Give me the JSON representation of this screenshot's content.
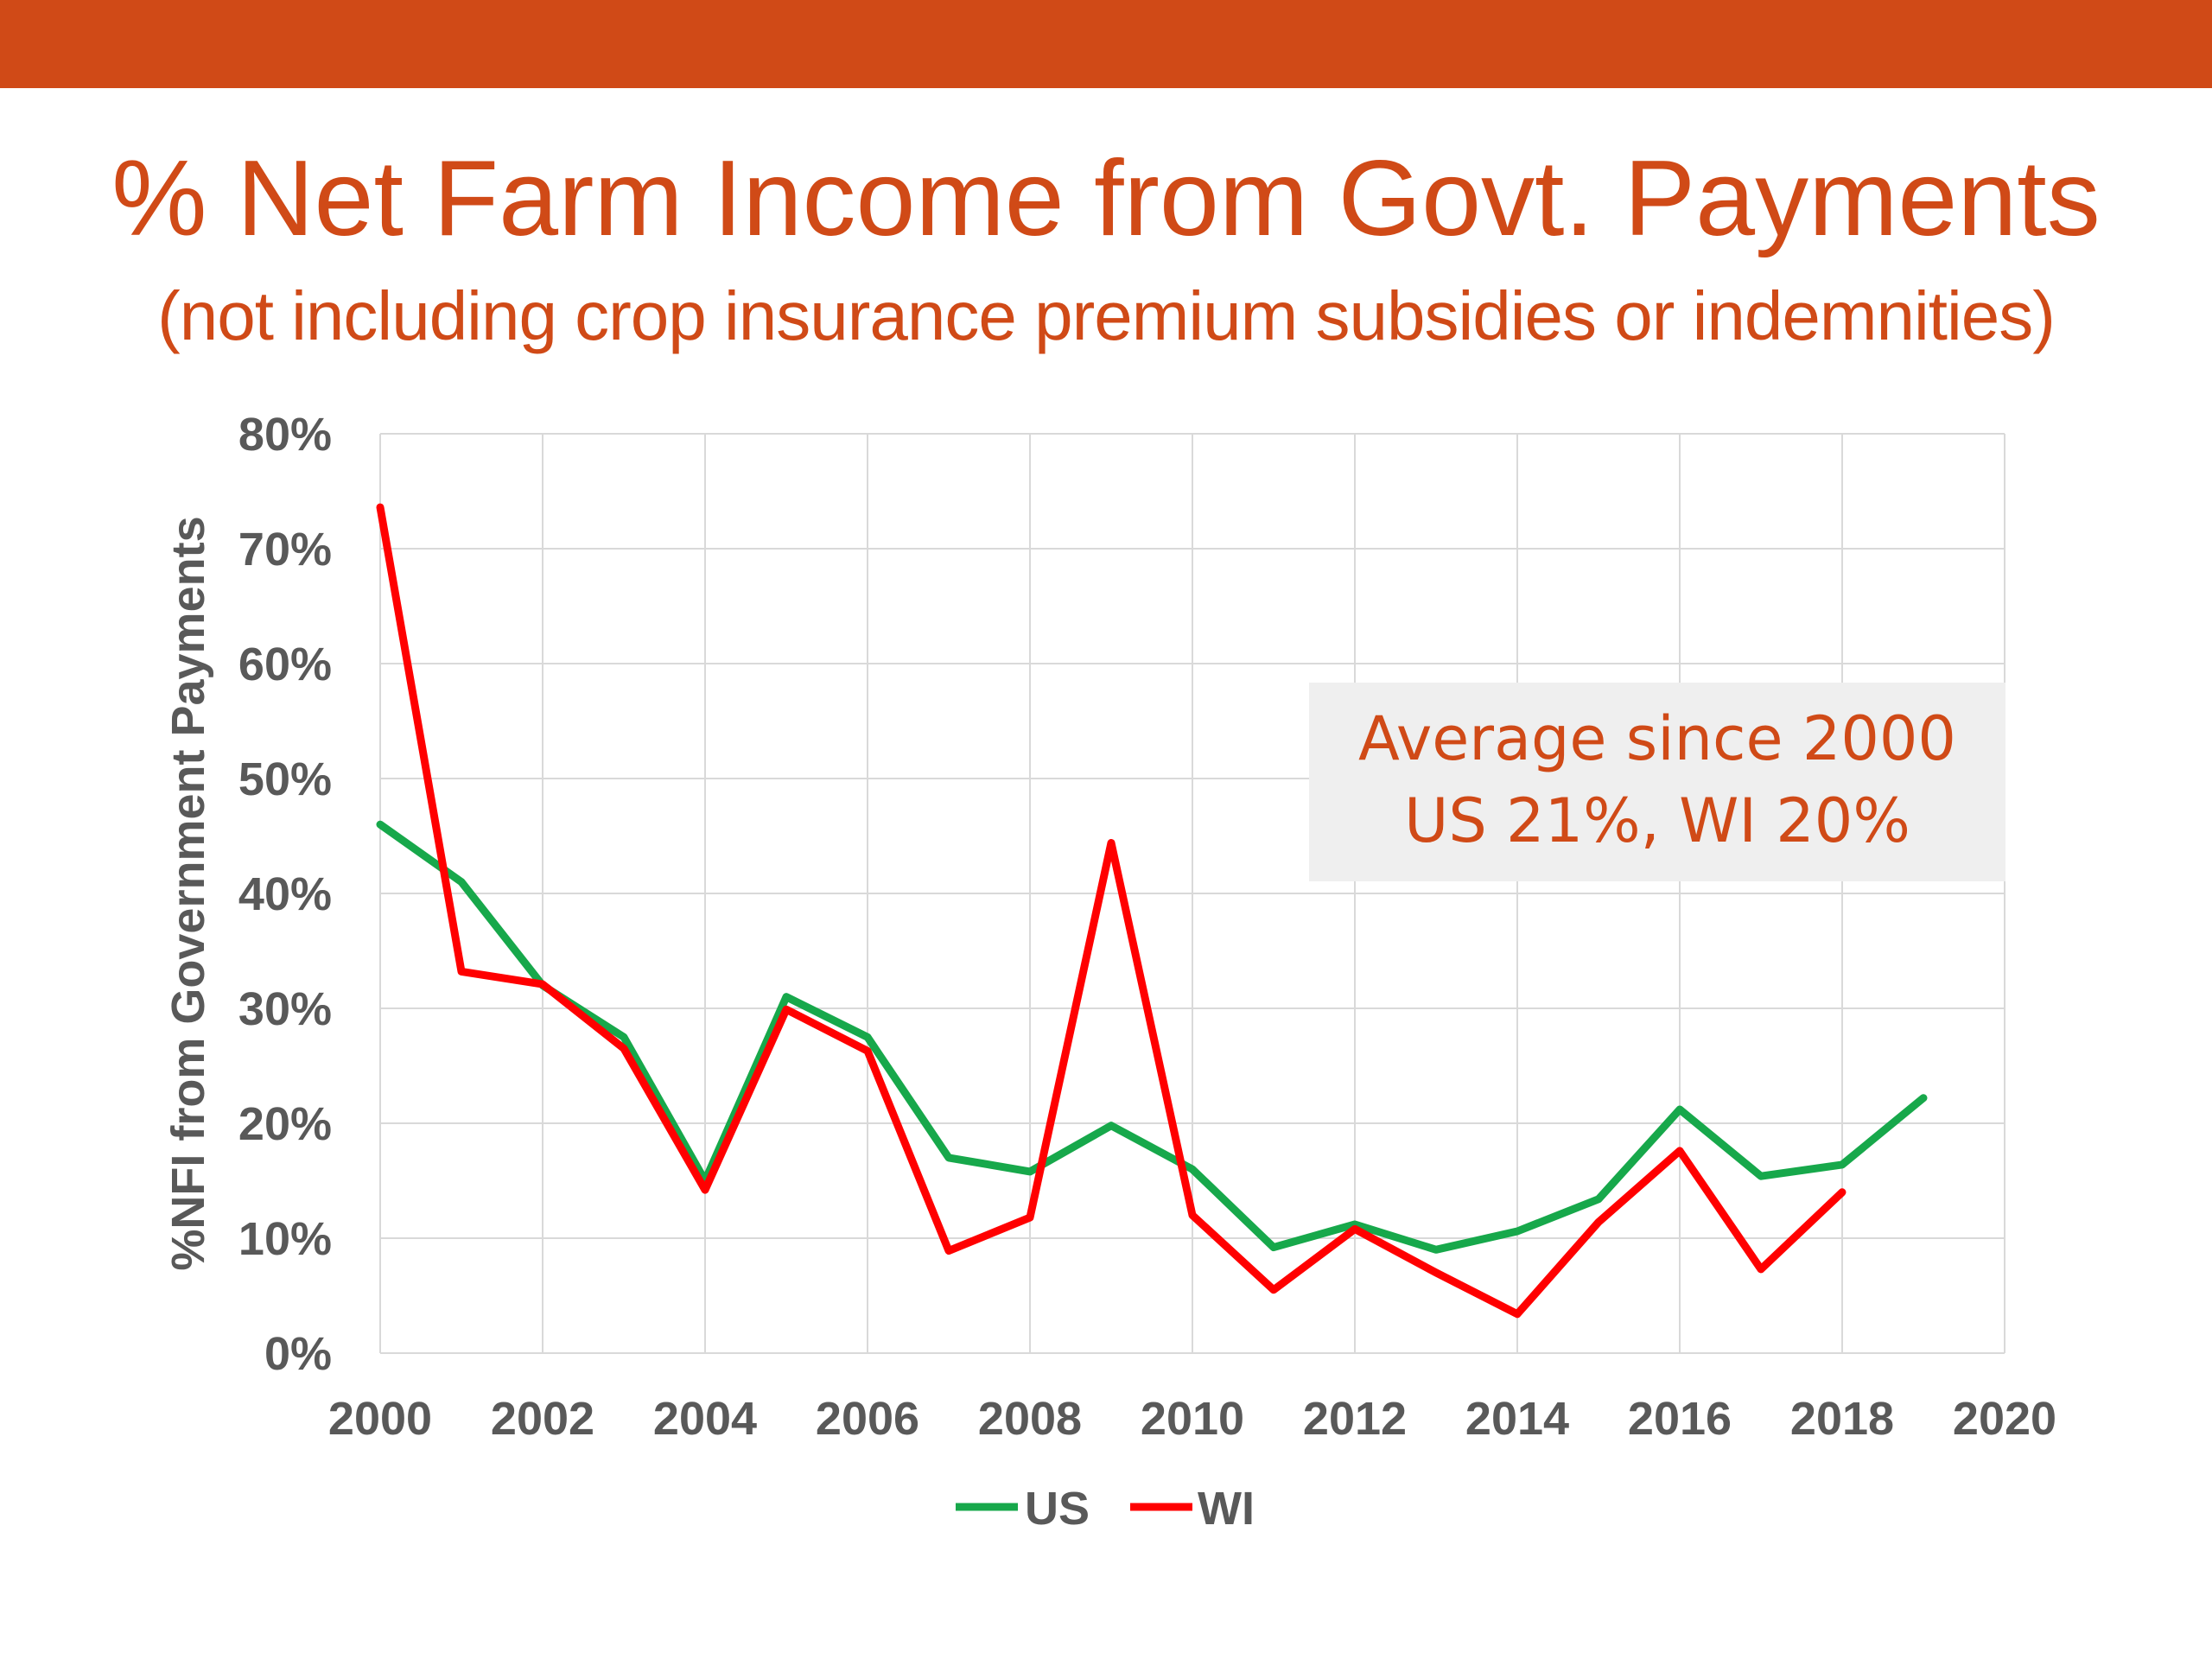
{
  "colors": {
    "accent": "#D04A17",
    "us_line": "#17A84B",
    "wi_line": "#FF0000",
    "gridline": "#D9D9D9",
    "axis_text": "#595959",
    "annotation_bg": "#EFEFEF"
  },
  "chart_data": {
    "type": "line",
    "title": "% Net Farm Income from Govt. Payments",
    "subtitle": "(not including crop insurance premium subsidies or indemnities)",
    "ylabel": "%NFI from Government Payments",
    "xlabel": "",
    "xlim": [
      2000,
      2020
    ],
    "ylim": [
      0,
      80
    ],
    "grid": true,
    "legend_position": "bottom",
    "x_ticks": [
      "2000",
      "2002",
      "2004",
      "2006",
      "2008",
      "2010",
      "2012",
      "2014",
      "2016",
      "2018",
      "2020"
    ],
    "y_ticks": [
      "0%",
      "10%",
      "20%",
      "30%",
      "40%",
      "50%",
      "60%",
      "70%",
      "80%"
    ],
    "series": [
      {
        "name": "US",
        "x": [
          2000,
          2001,
          2002,
          2003,
          2004,
          2005,
          2006,
          2007,
          2008,
          2009,
          2010,
          2011,
          2012,
          2013,
          2014,
          2015,
          2016,
          2017,
          2018,
          2019
        ],
        "y": [
          46,
          41,
          32,
          27.5,
          15,
          31,
          27.5,
          17,
          15.8,
          19.8,
          16,
          9.2,
          11.2,
          9,
          10.6,
          13.4,
          21.2,
          15.4,
          16.4,
          22.2
        ]
      },
      {
        "name": "WI",
        "x": [
          2000,
          2001,
          2002,
          2003,
          2004,
          2005,
          2006,
          2007,
          2008,
          2009,
          2010,
          2011,
          2012,
          2013,
          2014,
          2015,
          2016,
          2017,
          2018
        ],
        "y": [
          73.6,
          33.2,
          32.1,
          26.5,
          14.2,
          29.9,
          26.3,
          8.9,
          11.8,
          44.4,
          12,
          5.5,
          10.8,
          7,
          3.4,
          11.4,
          17.6,
          7.3,
          14
        ]
      }
    ],
    "annotation": {
      "line1": "Average since 2000",
      "line2": "US 21%, WI 20%"
    }
  }
}
